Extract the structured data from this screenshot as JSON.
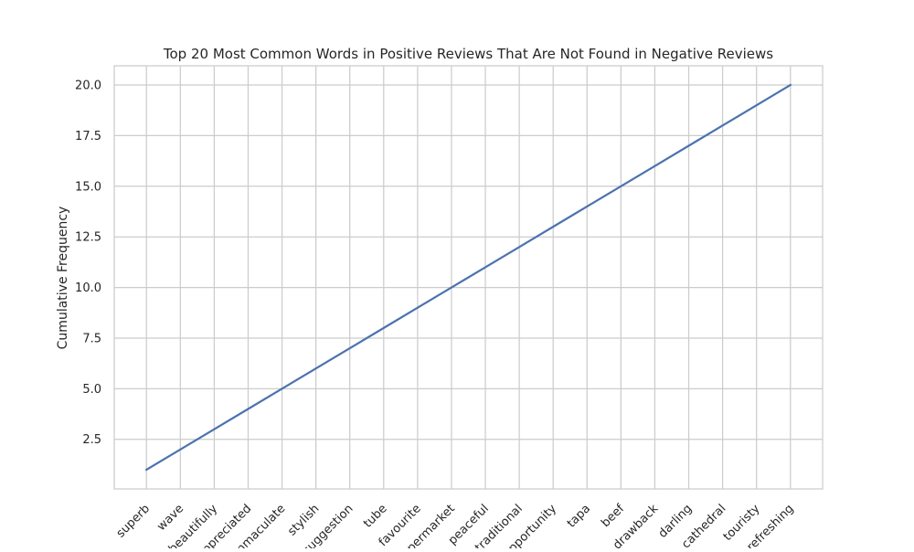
{
  "chart_data": {
    "type": "line",
    "title": "Top 20 Most Common Words in Positive Reviews That Are Not Found in Negative Reviews",
    "xlabel": "",
    "ylabel": "Cumulative Frequency",
    "categories": [
      "superb",
      "wave",
      "beautifully",
      "appreciated",
      "immaculate",
      "stylish",
      "suggestion",
      "tube",
      "favourite",
      "supermarket",
      "peaceful",
      "traditional",
      "opportunity",
      "tapa",
      "beef",
      "drawback",
      "darling",
      "cathedral",
      "touristy",
      "refreshing"
    ],
    "series": [
      {
        "values": [
          1,
          2,
          3,
          4,
          5,
          6,
          7,
          8,
          9,
          10,
          11,
          12,
          13,
          14,
          15,
          16,
          17,
          18,
          19,
          20
        ],
        "color": "#4c72b0"
      }
    ],
    "ylim": [
      0.05,
      20.95
    ],
    "yticks": [
      "2.5",
      "5.0",
      "7.5",
      "10.0",
      "12.5",
      "15.0",
      "17.5",
      "20.0"
    ],
    "grid": true,
    "style": {
      "grid_color": "#cccccc",
      "frame_color": "#cccccc",
      "text_color": "#262626"
    }
  }
}
